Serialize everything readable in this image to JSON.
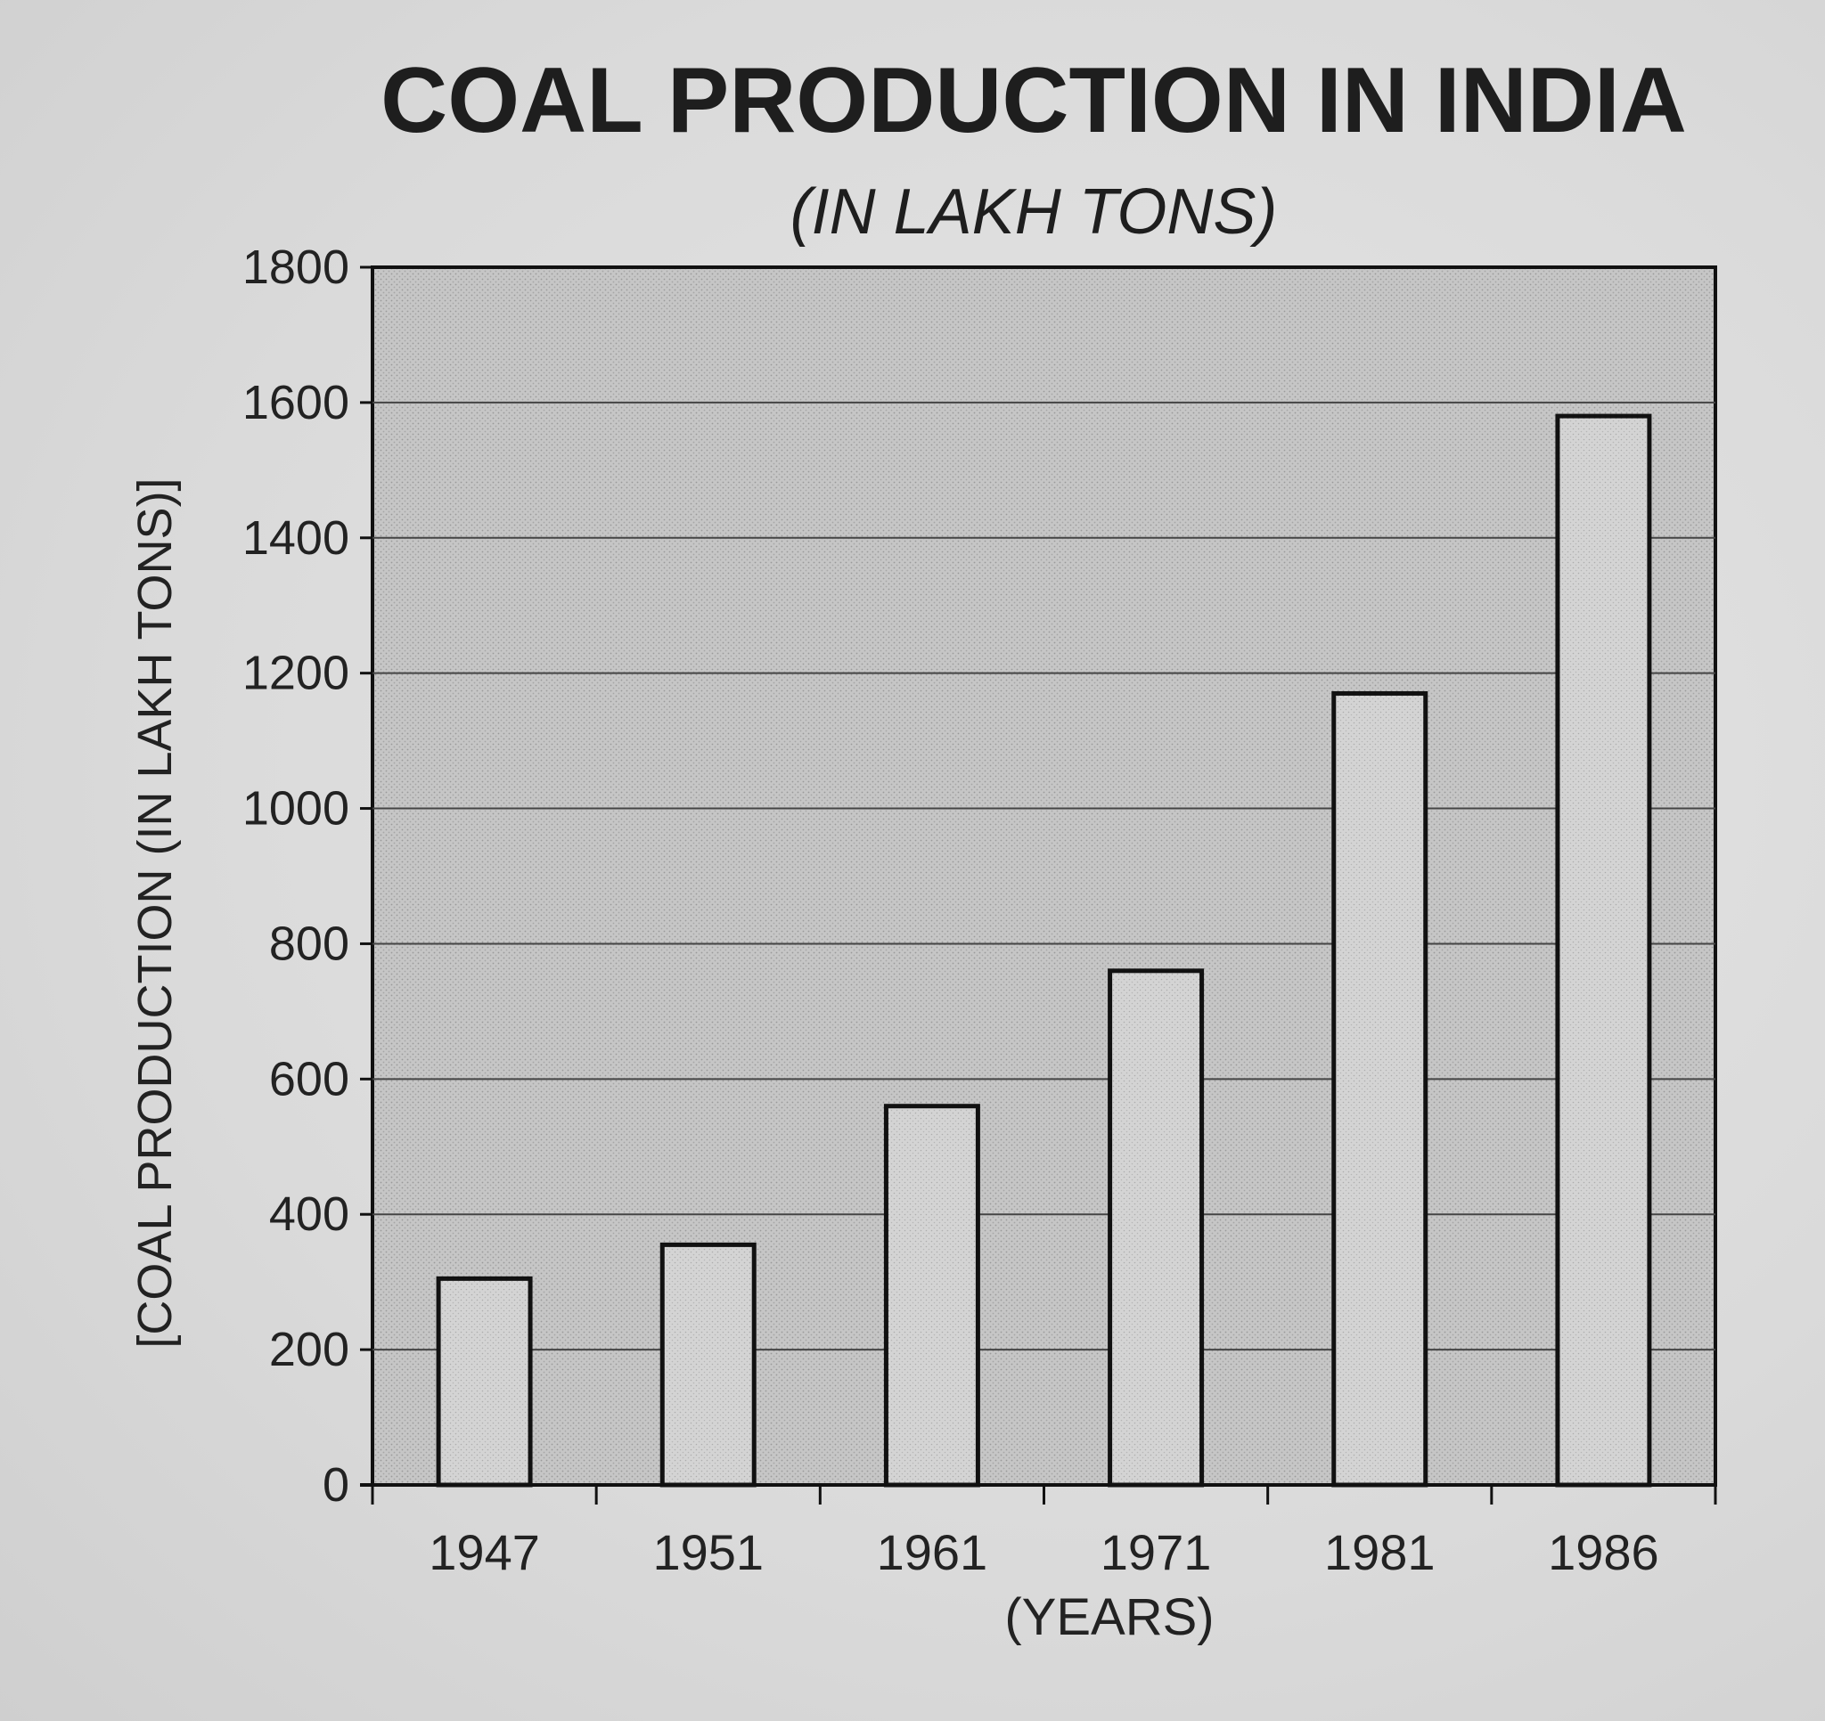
{
  "chart_data": {
    "type": "bar",
    "title": "COAL PRODUCTION IN INDIA",
    "subtitle": "(IN LAKH TONS)",
    "xlabel": "(YEARS)",
    "ylabel": "[COAL PRODUCTION (IN LAKH TONS)]",
    "categories": [
      "1947",
      "1951",
      "1961",
      "1971",
      "1981",
      "1986"
    ],
    "values": [
      305,
      355,
      560,
      760,
      1170,
      1580
    ],
    "ylim": [
      0,
      1800
    ],
    "yticks": [
      0,
      200,
      400,
      600,
      800,
      1000,
      1200,
      1400,
      1600,
      1800
    ],
    "grid": true,
    "colors": {
      "plot_background": "#c4c4c4",
      "bar_fill": "#d3d3d3",
      "bar_stroke": "#111111",
      "grid_line": "#444444"
    }
  }
}
